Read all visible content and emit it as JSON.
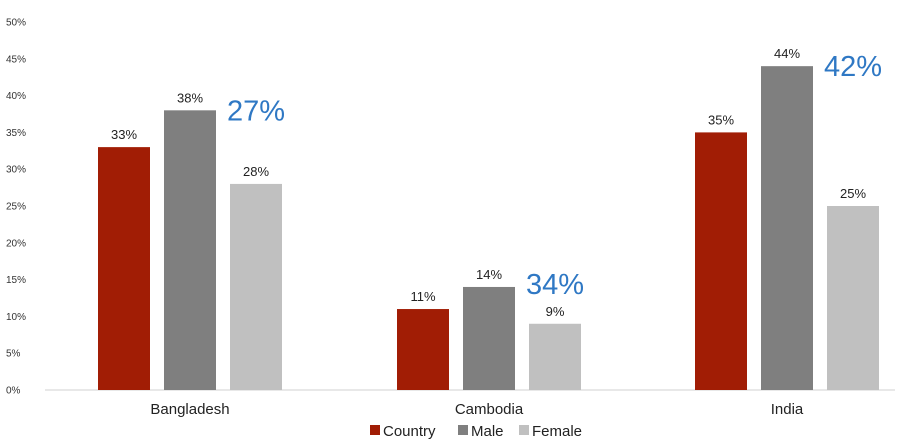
{
  "chart_data": {
    "type": "bar",
    "categories": [
      "Bangladesh",
      "Cambodia",
      "India"
    ],
    "series": [
      {
        "name": "Country",
        "values": [
          33,
          11,
          35
        ],
        "color": "#a11d05"
      },
      {
        "name": "Male",
        "values": [
          38,
          14,
          44
        ],
        "color": "#7f7f7f"
      },
      {
        "name": "Female",
        "values": [
          28,
          9,
          25
        ],
        "color": "#c0c0c0"
      }
    ],
    "data_labels": [
      [
        "33%",
        "11%",
        "35%"
      ],
      [
        "38%",
        "14%",
        "44%"
      ],
      [
        "28%",
        "9%",
        "25%"
      ]
    ],
    "annotations": [
      "27%",
      "34%",
      "42%"
    ],
    "annotation_color": "#2f78c4",
    "ylim": [
      0,
      50
    ],
    "yticks": [
      "0%",
      "5%",
      "10%",
      "15%",
      "20%",
      "25%",
      "30%",
      "35%",
      "40%",
      "45%",
      "50%"
    ],
    "grid": false,
    "legend_position": "bottom"
  }
}
